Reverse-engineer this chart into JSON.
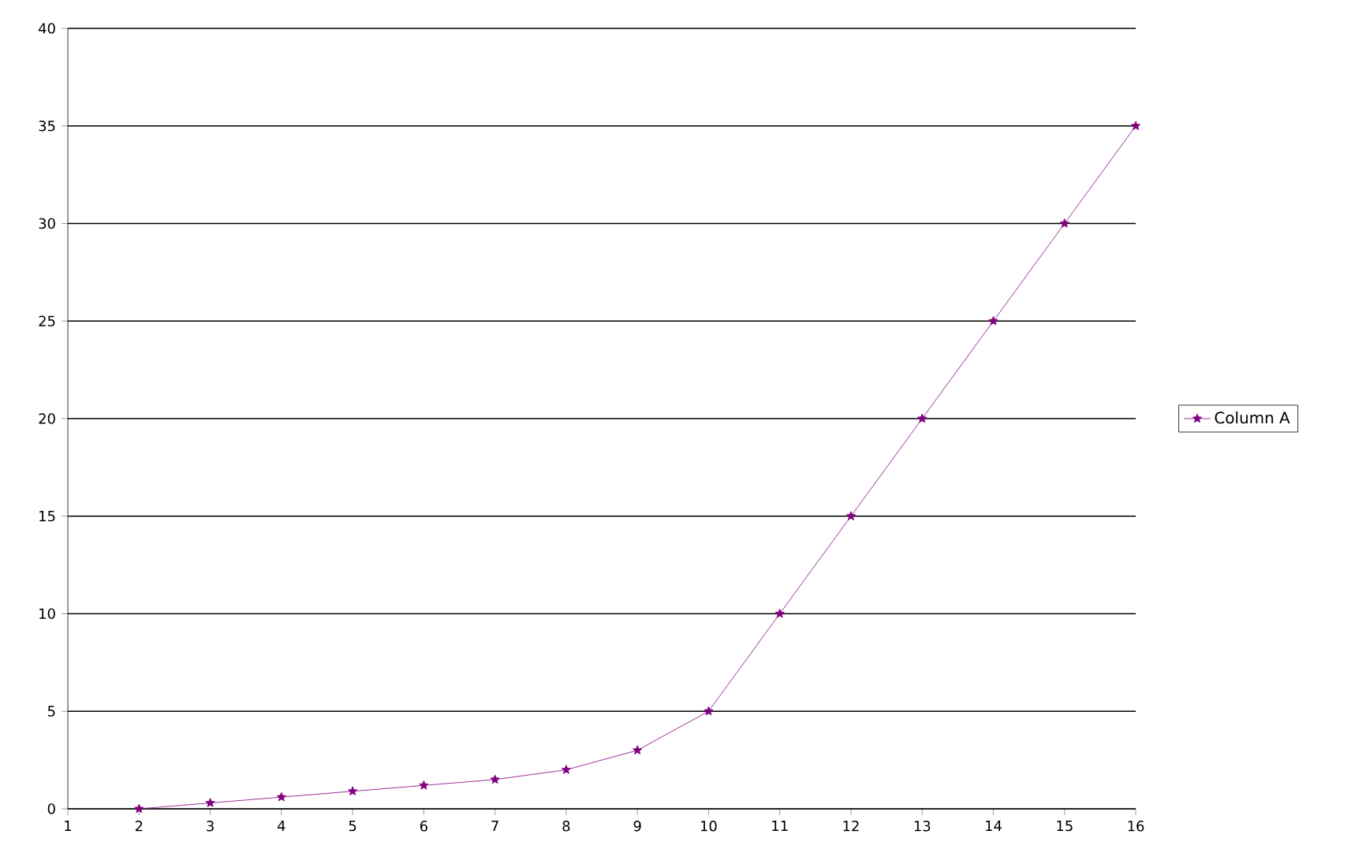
{
  "chart_data": {
    "type": "line",
    "x": [
      2,
      3,
      4,
      5,
      6,
      7,
      8,
      9,
      10,
      11,
      12,
      13,
      14,
      15,
      16
    ],
    "series": [
      {
        "name": "Column A",
        "color": "#800080",
        "values": [
          0,
          0.3,
          0.6,
          0.9,
          1.2,
          1.5,
          2,
          3,
          5,
          10,
          15,
          20,
          25,
          30,
          35
        ]
      }
    ],
    "xlim": [
      1,
      16
    ],
    "xticks": [
      1,
      2,
      3,
      4,
      5,
      6,
      7,
      8,
      9,
      10,
      11,
      12,
      13,
      14,
      15,
      16
    ],
    "ylim": [
      0,
      40
    ],
    "yticks": [
      0,
      5,
      10,
      15,
      20,
      25,
      30,
      35,
      40
    ],
    "grid": "y",
    "legend": "right",
    "marker": "star",
    "line_style": "solid"
  }
}
